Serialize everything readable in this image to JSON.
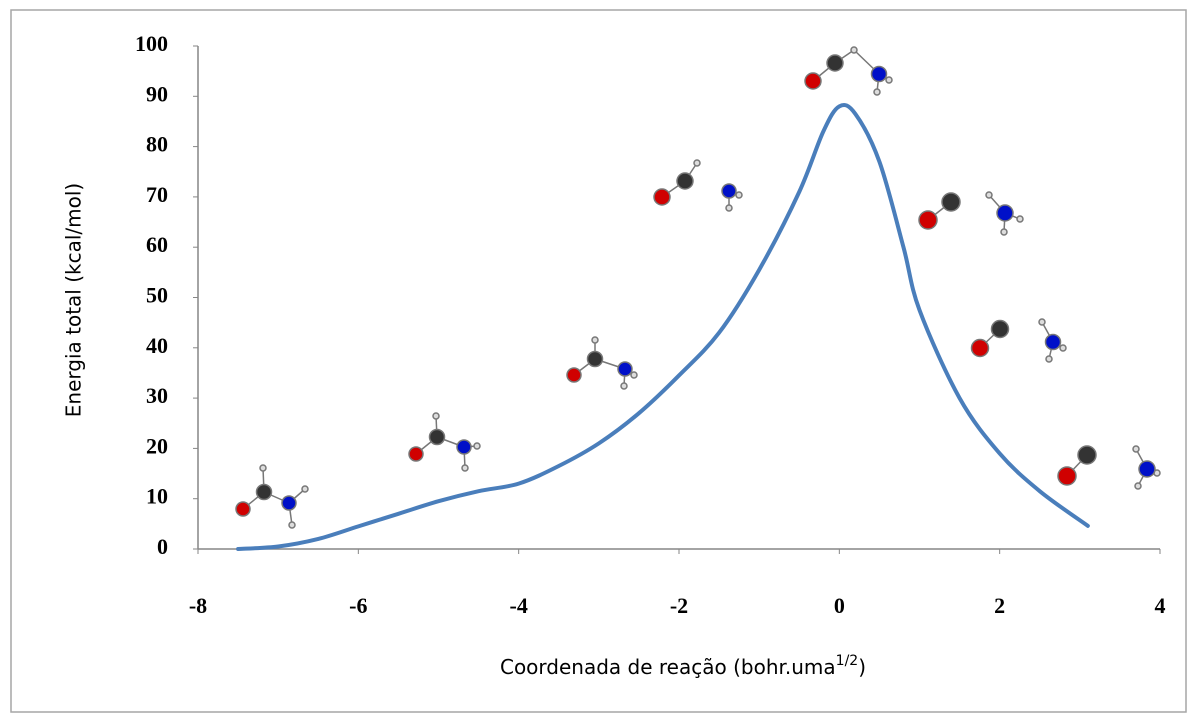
{
  "chart_data": {
    "type": "line",
    "x_label": "Coordenada de reação (bohr.uma",
    "x_label_superscript": "1/2",
    "x_label_end": ")",
    "y_label": "Energia total (kcal/mol)",
    "series": [
      {
        "color": "#4a7ebb",
        "x": [
          -7.5,
          -7,
          -6.5,
          -6,
          -5.5,
          -5,
          -4.5,
          -4,
          -3.5,
          -3,
          -2.5,
          -2,
          -1.5,
          -1,
          -0.5,
          -0.2,
          0,
          0.2,
          0.5,
          0.8,
          1,
          1.5,
          2,
          2.5,
          3.1
        ],
        "values": [
          0,
          0.5,
          2,
          4.5,
          7,
          9.5,
          11.5,
          13,
          16.5,
          21,
          27,
          34.5,
          43,
          55.5,
          71,
          83,
          88,
          86.5,
          77,
          60,
          47.5,
          30,
          19,
          11.5,
          4.6
        ]
      }
    ],
    "xlim": [
      -8,
      4
    ],
    "xticks": [
      -8,
      -6,
      -4,
      -2,
      0,
      2,
      4
    ],
    "ylim": [
      0,
      100
    ],
    "yticks": [
      0,
      10,
      20,
      30,
      40,
      50,
      60,
      70,
      80,
      90,
      100
    ],
    "grid": false
  }
}
